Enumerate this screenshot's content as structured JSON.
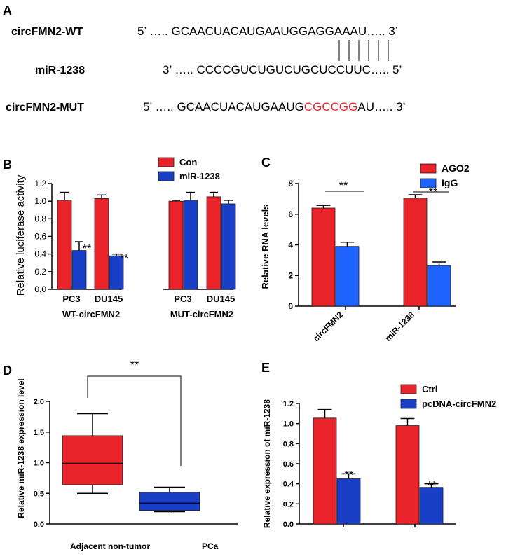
{
  "panel_a": {
    "letter": "A",
    "wt": {
      "label": "circFMN2-WT",
      "prefix": "5’ ….. ",
      "seq": "GCAACUACAUGAAUGGAGGAAAU",
      "suffix": "….. 3’"
    },
    "mir": {
      "label": "miR-1238",
      "prefix": "3’ ….. ",
      "seq": "CCCCGUCUGUCUGCUCCUUC",
      "suffix": "….. 5’"
    },
    "mut": {
      "label": "circFMN2-MUT",
      "prefix": "5’ ….. ",
      "seq_black": "GCAACUACAUGAAUG",
      "seq_red": "CGCCGG",
      "seq_tail": "AU",
      "suffix": "….. 3’"
    }
  },
  "colors": {
    "red": "#e8242a",
    "blue": "#1a3fc7",
    "blue_c": "#1f63ff"
  },
  "chart_data": [
    {
      "panel": "B",
      "type": "bar",
      "ylabel": "Relative luciferase activity",
      "ylim": [
        0,
        1.2
      ],
      "yticks": [
        "0.0",
        "0.2",
        "0.4",
        "0.6",
        "0.8",
        "1.0",
        "1.2"
      ],
      "categories": [
        "PC3",
        "DU145",
        "PC3",
        "DU145"
      ],
      "groups": [
        "WT-circFMN2",
        "MUT-circFMN2"
      ],
      "series": [
        {
          "name": "Con",
          "values": [
            1.01,
            1.03,
            1.0,
            1.05
          ],
          "errors": [
            0.09,
            0.04,
            0.01,
            0.05
          ]
        },
        {
          "name": "miR-1238",
          "values": [
            0.44,
            0.38,
            1.01,
            0.97
          ],
          "errors": [
            0.1,
            0.02,
            0.09,
            0.04
          ]
        }
      ],
      "annotations": [
        "**",
        "**"
      ]
    },
    {
      "panel": "C",
      "type": "bar",
      "ylabel": "Relative RNA levels",
      "ylim": [
        0,
        8
      ],
      "yticks": [
        "0",
        "2",
        "4",
        "6",
        "8"
      ],
      "categories": [
        "circFMN2",
        "miR-1238"
      ],
      "series": [
        {
          "name": "AGO2",
          "values": [
            6.4,
            7.05
          ],
          "errors": [
            0.18,
            0.22
          ]
        },
        {
          "name": "IgG",
          "values": [
            3.9,
            2.65
          ],
          "errors": [
            0.27,
            0.23
          ]
        }
      ],
      "annotations": [
        "**",
        "**"
      ]
    },
    {
      "panel": "D",
      "type": "box",
      "ylabel": "Relative miR-1238 expression level",
      "ylim": [
        0,
        2.0
      ],
      "yticks": [
        "0.0",
        "0.5",
        "1.0",
        "1.5",
        "2.0"
      ],
      "categories": [
        "Adjacent non-tumor",
        "PCa"
      ],
      "boxes": [
        {
          "min": 0.5,
          "q1": 0.64,
          "median": 0.99,
          "q3": 1.44,
          "max": 1.8
        },
        {
          "min": 0.2,
          "q1": 0.22,
          "median": 0.34,
          "q3": 0.52,
          "max": 0.6
        }
      ],
      "annotations": [
        "**"
      ]
    },
    {
      "panel": "E",
      "type": "bar",
      "ylabel": "Relative  expression of miR-1238",
      "ylim": [
        0,
        1.2
      ],
      "yticks": [
        "0.0",
        "0.2",
        "0.4",
        "0.6",
        "0.8",
        "1.0",
        "1.2"
      ],
      "categories": [
        "",
        ""
      ],
      "series": [
        {
          "name": "Ctrl",
          "values": [
            1.055,
            0.98
          ],
          "errors": [
            0.085,
            0.07
          ]
        },
        {
          "name": "pcDNA-circFMN2",
          "values": [
            0.45,
            0.365
          ],
          "errors": [
            0.05,
            0.035
          ]
        }
      ],
      "annotations": [
        "**",
        "**"
      ]
    }
  ]
}
